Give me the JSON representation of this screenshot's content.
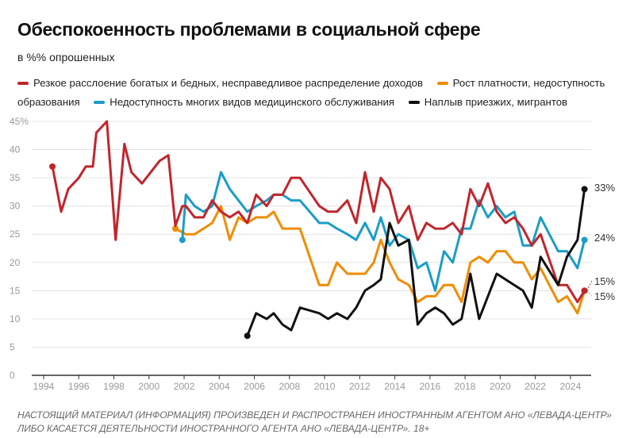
{
  "chart_data": {
    "type": "line",
    "title": "Обеспокоенность проблемами в социальной сфере",
    "subtitle": "в %% опрошенных",
    "xlabel": "",
    "ylabel": "",
    "xlim": [
      1994,
      2025
    ],
    "ylim": [
      0,
      45
    ],
    "x_ticks": [
      "1994",
      "1996",
      "1998",
      "2000",
      "2002",
      "2004",
      "2006",
      "2008",
      "2010",
      "2012",
      "2014",
      "2016",
      "2018",
      "2020",
      "2022",
      "2024"
    ],
    "y_ticks": [
      "0",
      "5",
      "10",
      "15",
      "20",
      "25",
      "30",
      "35",
      "40",
      "45%"
    ],
    "grid": true,
    "legend_position": "top",
    "series": [
      {
        "name": "Резкое расслоение богатых и бедных, несправедливое распределение доходов",
        "color": "#c0262d",
        "end_label": "15%",
        "points": [
          [
            1994.5,
            37
          ],
          [
            1995.0,
            29
          ],
          [
            1995.4,
            33
          ],
          [
            1996.0,
            35
          ],
          [
            1996.4,
            37
          ],
          [
            1996.8,
            37
          ],
          [
            1997.0,
            43
          ],
          [
            1997.6,
            45
          ],
          [
            1998.1,
            24
          ],
          [
            1998.6,
            41
          ],
          [
            1999.0,
            36
          ],
          [
            1999.6,
            34
          ],
          [
            2000.6,
            38
          ],
          [
            2001.1,
            39
          ],
          [
            2001.5,
            26.5
          ],
          [
            2001.9,
            30
          ],
          [
            2002.1,
            30
          ],
          [
            2002.6,
            28
          ],
          [
            2003.1,
            28
          ],
          [
            2003.6,
            31
          ],
          [
            2004.1,
            29
          ],
          [
            2004.6,
            28
          ],
          [
            2005.1,
            29
          ],
          [
            2005.6,
            27
          ],
          [
            2006.1,
            32
          ],
          [
            2006.7,
            30
          ],
          [
            2007.1,
            32
          ],
          [
            2007.6,
            32
          ],
          [
            2008.1,
            35
          ],
          [
            2008.6,
            35
          ],
          [
            2009.7,
            30
          ],
          [
            2010.2,
            29
          ],
          [
            2010.7,
            29
          ],
          [
            2011.3,
            31
          ],
          [
            2011.8,
            27
          ],
          [
            2012.3,
            36
          ],
          [
            2012.8,
            29
          ],
          [
            2013.2,
            35
          ],
          [
            2013.7,
            33
          ],
          [
            2014.2,
            27
          ],
          [
            2014.8,
            30
          ],
          [
            2015.3,
            24
          ],
          [
            2015.8,
            27
          ],
          [
            2016.3,
            26
          ],
          [
            2016.8,
            26
          ],
          [
            2017.3,
            27
          ],
          [
            2017.8,
            25
          ],
          [
            2018.3,
            33
          ],
          [
            2018.8,
            30
          ],
          [
            2019.3,
            34
          ],
          [
            2019.8,
            29
          ],
          [
            2020.3,
            27
          ],
          [
            2020.8,
            28
          ],
          [
            2021.3,
            26
          ],
          [
            2021.8,
            23
          ],
          [
            2022.3,
            25
          ],
          [
            2022.8,
            20.5
          ],
          [
            2023.3,
            16
          ],
          [
            2023.8,
            16
          ],
          [
            2024.4,
            13
          ],
          [
            2024.8,
            15
          ]
        ]
      },
      {
        "name": "Рост платности, недоступность образования",
        "color": "#f08c00",
        "end_label": "15%",
        "points": [
          [
            2001.5,
            26
          ],
          [
            2002.1,
            25
          ],
          [
            2002.6,
            25
          ],
          [
            2003.1,
            26
          ],
          [
            2003.6,
            27
          ],
          [
            2004.1,
            30
          ],
          [
            2004.6,
            24
          ],
          [
            2005.1,
            28
          ],
          [
            2005.6,
            27
          ],
          [
            2006.1,
            28
          ],
          [
            2006.7,
            28
          ],
          [
            2007.1,
            29
          ],
          [
            2007.6,
            26
          ],
          [
            2008.1,
            26
          ],
          [
            2008.6,
            26
          ],
          [
            2009.7,
            16
          ],
          [
            2010.2,
            16
          ],
          [
            2010.7,
            20
          ],
          [
            2011.3,
            18
          ],
          [
            2011.8,
            18
          ],
          [
            2012.3,
            18
          ],
          [
            2012.8,
            20
          ],
          [
            2013.2,
            24
          ],
          [
            2013.7,
            20
          ],
          [
            2014.2,
            17
          ],
          [
            2014.8,
            16
          ],
          [
            2015.3,
            13
          ],
          [
            2015.8,
            14
          ],
          [
            2016.3,
            14
          ],
          [
            2016.8,
            16
          ],
          [
            2017.3,
            16
          ],
          [
            2017.8,
            13
          ],
          [
            2018.3,
            20
          ],
          [
            2018.8,
            21
          ],
          [
            2019.3,
            20
          ],
          [
            2019.8,
            22
          ],
          [
            2020.3,
            22
          ],
          [
            2020.8,
            20
          ],
          [
            2021.3,
            20
          ],
          [
            2021.8,
            17
          ],
          [
            2022.3,
            19
          ],
          [
            2022.8,
            16
          ],
          [
            2023.3,
            13
          ],
          [
            2023.8,
            14
          ],
          [
            2024.4,
            11
          ],
          [
            2024.8,
            15
          ]
        ]
      },
      {
        "name": "Недоступность многих видов медицинского обслуживания",
        "color": "#1a9dc8",
        "end_label": "24%",
        "points": [
          [
            2001.9,
            24
          ],
          [
            2002.1,
            32
          ],
          [
            2002.6,
            30
          ],
          [
            2003.1,
            29
          ],
          [
            2003.6,
            30
          ],
          [
            2004.1,
            36
          ],
          [
            2004.6,
            33
          ],
          [
            2005.1,
            31
          ],
          [
            2005.6,
            29
          ],
          [
            2006.1,
            30
          ],
          [
            2006.7,
            31
          ],
          [
            2007.1,
            32
          ],
          [
            2007.6,
            32
          ],
          [
            2008.1,
            31
          ],
          [
            2008.6,
            31
          ],
          [
            2009.7,
            27
          ],
          [
            2010.2,
            27
          ],
          [
            2010.7,
            26
          ],
          [
            2011.3,
            25
          ],
          [
            2011.8,
            24
          ],
          [
            2012.3,
            27
          ],
          [
            2012.8,
            24
          ],
          [
            2013.2,
            28
          ],
          [
            2013.7,
            23
          ],
          [
            2014.2,
            25
          ],
          [
            2014.8,
            24
          ],
          [
            2015.3,
            19
          ],
          [
            2015.8,
            20
          ],
          [
            2016.3,
            15
          ],
          [
            2016.8,
            22
          ],
          [
            2017.3,
            20
          ],
          [
            2017.8,
            26
          ],
          [
            2018.3,
            26
          ],
          [
            2018.8,
            31
          ],
          [
            2019.3,
            28
          ],
          [
            2019.8,
            30
          ],
          [
            2020.3,
            28
          ],
          [
            2020.8,
            29
          ],
          [
            2021.3,
            23
          ],
          [
            2021.8,
            23
          ],
          [
            2022.3,
            28
          ],
          [
            2022.8,
            25
          ],
          [
            2023.3,
            22
          ],
          [
            2023.8,
            22
          ],
          [
            2024.4,
            19
          ],
          [
            2024.8,
            24
          ]
        ]
      },
      {
        "name": "Наплыв приезжих, мигрантов",
        "color": "#111111",
        "end_label": "33%",
        "points": [
          [
            2005.6,
            7
          ],
          [
            2006.1,
            11
          ],
          [
            2006.7,
            10
          ],
          [
            2007.1,
            11
          ],
          [
            2007.6,
            9
          ],
          [
            2008.1,
            8
          ],
          [
            2008.6,
            12
          ],
          [
            2009.7,
            11
          ],
          [
            2010.2,
            10
          ],
          [
            2010.7,
            11
          ],
          [
            2011.3,
            10
          ],
          [
            2011.8,
            12
          ],
          [
            2012.3,
            15
          ],
          [
            2012.8,
            16
          ],
          [
            2013.2,
            17
          ],
          [
            2013.7,
            27
          ],
          [
            2014.2,
            23
          ],
          [
            2014.8,
            24
          ],
          [
            2015.3,
            9
          ],
          [
            2015.8,
            11
          ],
          [
            2016.3,
            12
          ],
          [
            2016.8,
            11
          ],
          [
            2017.3,
            9
          ],
          [
            2017.8,
            10
          ],
          [
            2018.3,
            18
          ],
          [
            2018.8,
            10
          ],
          [
            2019.8,
            18
          ],
          [
            2020.8,
            16
          ],
          [
            2021.3,
            15
          ],
          [
            2021.8,
            12
          ],
          [
            2022.3,
            21
          ],
          [
            2023.3,
            16
          ],
          [
            2023.8,
            21
          ],
          [
            2024.4,
            24
          ],
          [
            2024.8,
            33
          ]
        ]
      }
    ]
  },
  "legend_items": [
    "Резкое расслоение богатых и бедных, несправедливое распределение доходов",
    "Рост платности, недоступность образования",
    "Недоступность многих видов медицинского обслуживания",
    "Наплыв приезжих, мигрантов"
  ],
  "footer": "НАСТОЯЩИЙ МАТЕРИАЛ (ИНФОРМАЦИЯ) ПРОИЗВЕДЕН И РАСПРОСТРАНЕН ИНОСТРАННЫМ АГЕНТОМ АНО «ЛЕВАДА-ЦЕНТР» ЛИБО КАСАЕТСЯ ДЕЯТЕЛЬНОСТИ ИНОСТРАННОГО АГЕНТА АНО «ЛЕВАДА-ЦЕНТР». 18+"
}
